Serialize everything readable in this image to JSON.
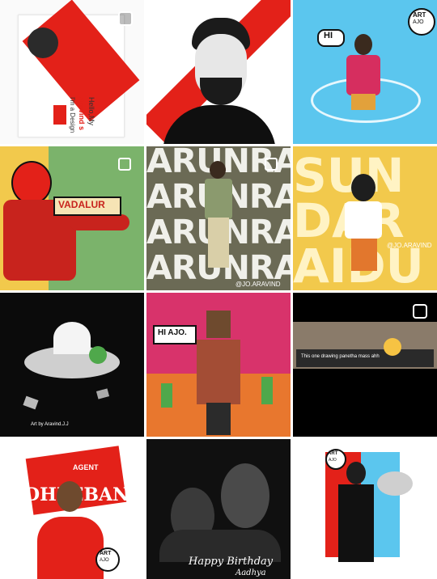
{
  "colors": {
    "red": "#e32119",
    "sky": "#5bc6ee",
    "olive": "#6b6a55",
    "mustard": "#f2c94c",
    "dark": "#0b0b0b",
    "pink": "#d8336b"
  },
  "posts": [
    {
      "label": "post-1",
      "lines": [
        "Hello,My",
        "Aravind s",
        "I'm a Design"
      ],
      "badge": "reels-icon"
    },
    {
      "label": "post-2"
    },
    {
      "label": "post-3",
      "speech": "HI",
      "logo": [
        "ART",
        "AJO"
      ]
    },
    {
      "label": "post-4",
      "banner": "VADALUR",
      "badge": "multi-image-icon"
    },
    {
      "label": "post-5",
      "rows": [
        "ARUNRAJ",
        "ARUNRAJ",
        "ARUNRAJ",
        "ARUNRAJ"
      ],
      "handle": "@JO.ARAVIND",
      "badge": "multi-image-icon"
    },
    {
      "label": "post-6",
      "rows": [
        "SUN",
        "DAR",
        "AIDU"
      ],
      "handle": "@JO.ARAVIND"
    },
    {
      "label": "post-7",
      "credit": "Art by Aravind.J.J"
    },
    {
      "label": "post-8",
      "speech": "HI AJO."
    },
    {
      "label": "post-9",
      "comment": "This one drawing panetha mass ahh",
      "badge": "reels-icon"
    },
    {
      "label": "post-10",
      "agent": "AGENT",
      "name": "DHEEBAN",
      "logo": [
        "ART",
        "AJO"
      ]
    },
    {
      "label": "post-11",
      "greeting": [
        "Happy Birthday",
        "Aadhya"
      ]
    },
    {
      "label": "post-12",
      "logo": [
        "ART",
        "AJO"
      ]
    }
  ]
}
